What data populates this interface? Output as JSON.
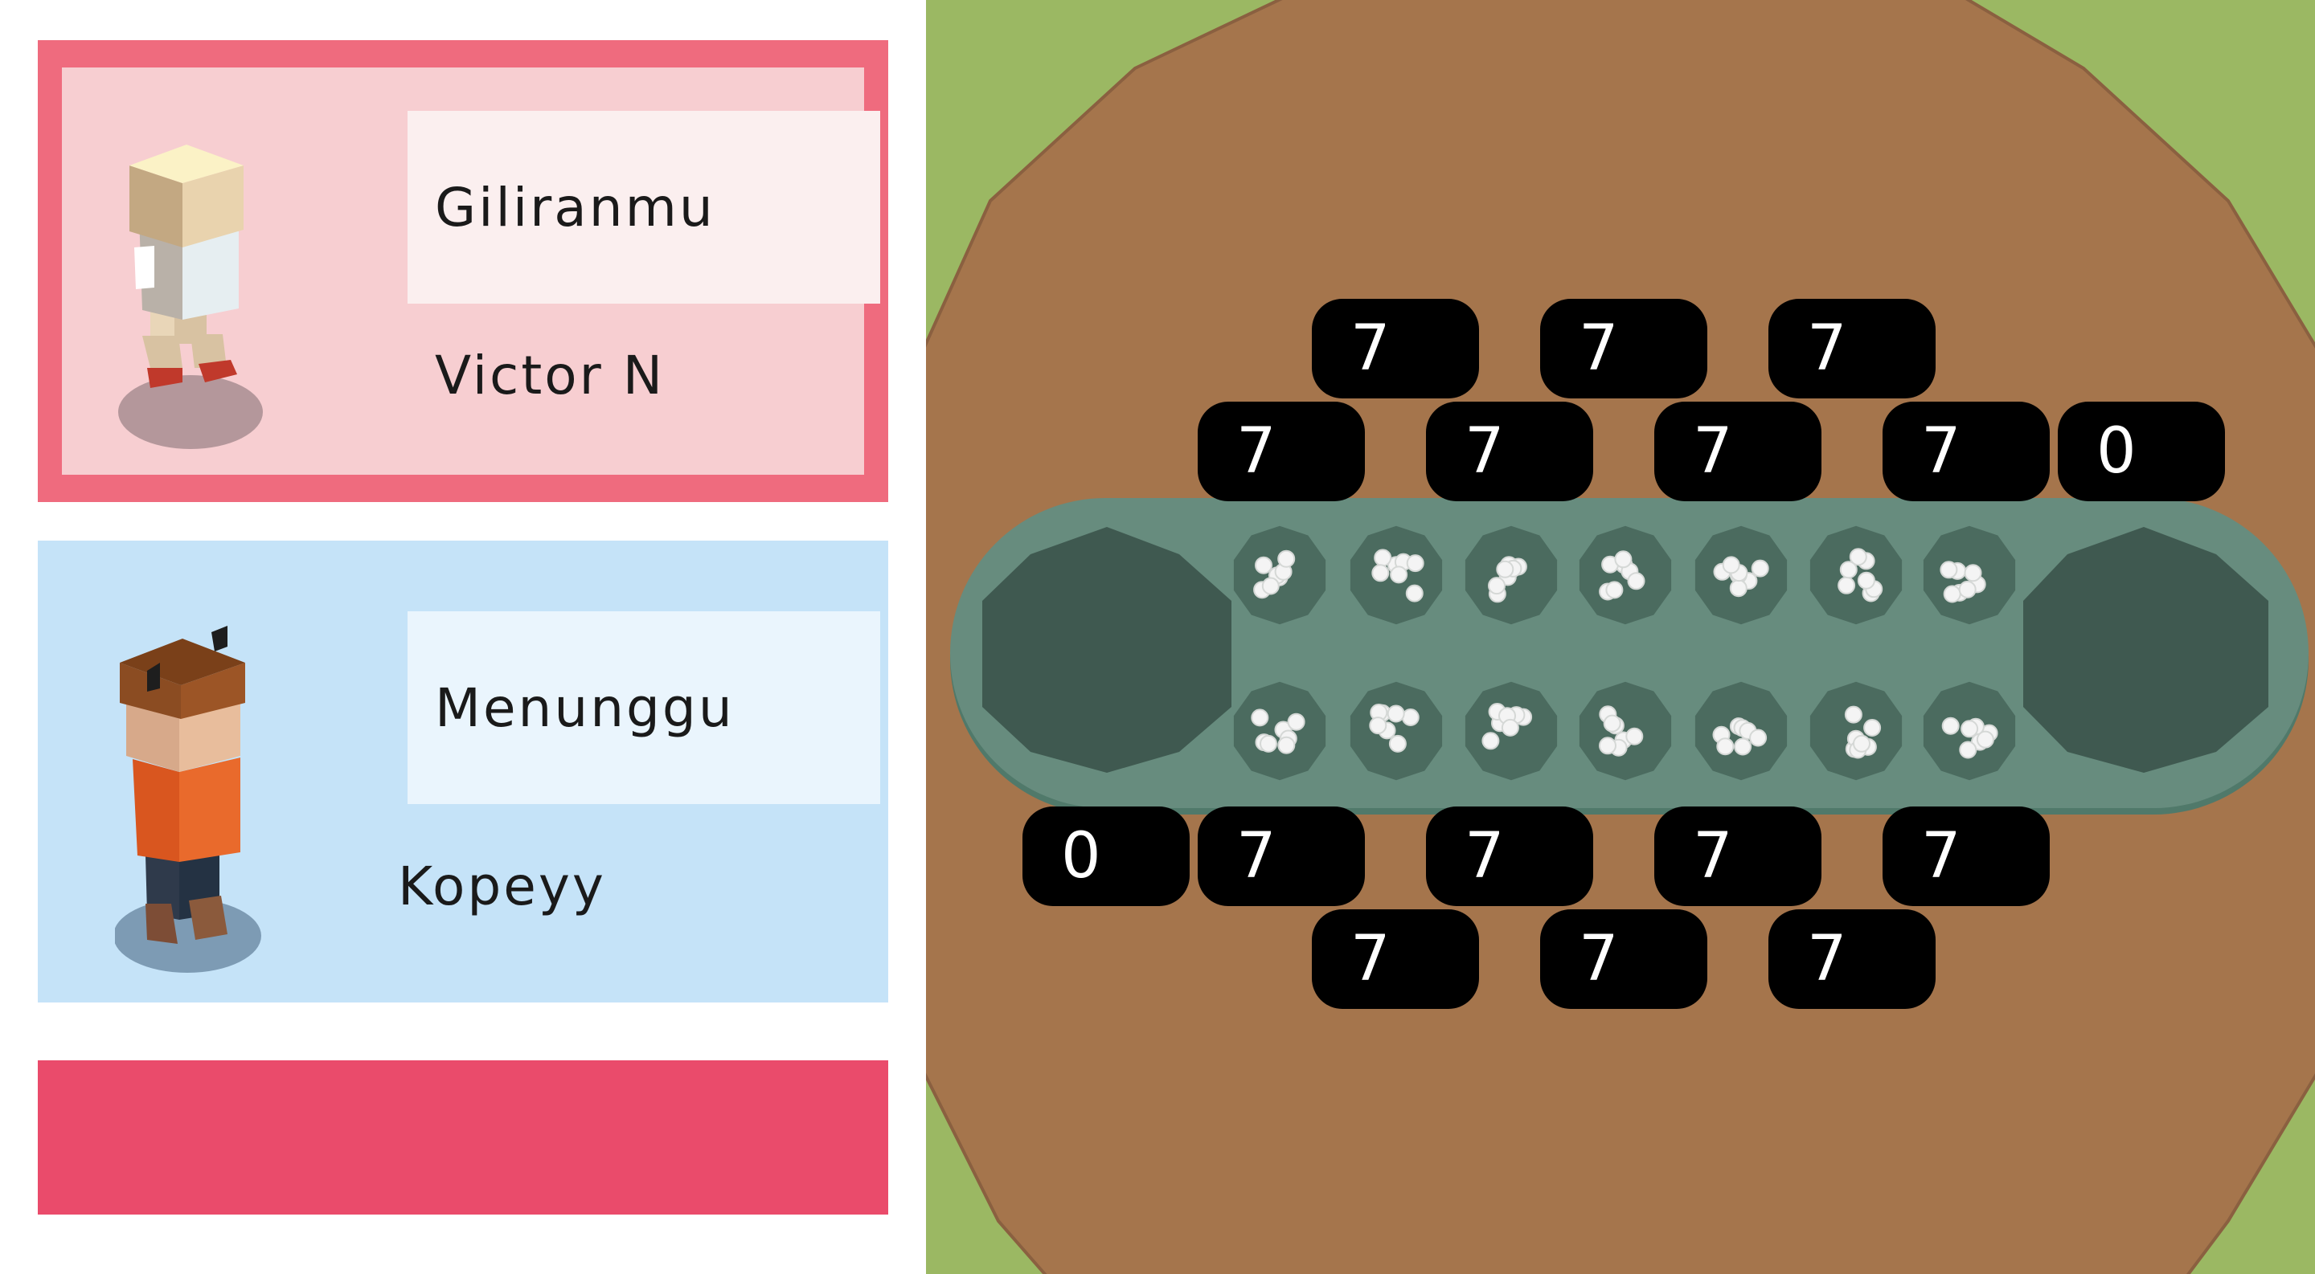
{
  "players": [
    {
      "status": "Giliranmu",
      "name": "Victor N",
      "turn_color": "#ef6b7e"
    },
    {
      "status": "Menunggu",
      "name": "Kopeyy",
      "turn_color": "#c5e3f8"
    }
  ],
  "action_bar_color": "#ea4b6b",
  "board": {
    "top_row_counts": [
      "7",
      "7",
      "7",
      "7",
      "7",
      "7",
      "7"
    ],
    "bottom_row_counts": [
      "7",
      "7",
      "7",
      "7",
      "7",
      "7",
      "7"
    ],
    "store_right": "0",
    "store_left": "0"
  }
}
